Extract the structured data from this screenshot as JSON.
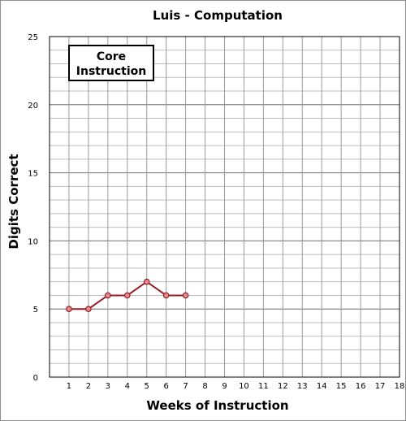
{
  "chart_data": {
    "type": "line",
    "title": "Luis - Computation",
    "xlabel": "Weeks of Instruction",
    "ylabel": "Digits Correct",
    "xlim": [
      0,
      18
    ],
    "ylim": [
      0,
      25
    ],
    "x_ticks": [
      "1",
      "2",
      "3",
      "4",
      "5",
      "6",
      "7",
      "8",
      "9",
      "10",
      "11",
      "12",
      "13",
      "14",
      "15",
      "16",
      "17",
      "18"
    ],
    "y_ticks": [
      "0",
      "5",
      "10",
      "15",
      "20",
      "25"
    ],
    "grid": true,
    "phase_label": [
      "Core",
      "Instruction"
    ],
    "colors": {
      "line": "#9a1c24",
      "marker_fill": "#e88d94",
      "grid": "#bdbdbd"
    },
    "series": [
      {
        "x": [
          1,
          2,
          3,
          4,
          5,
          6,
          7
        ],
        "y": [
          5,
          5,
          6,
          6,
          7,
          6,
          6
        ]
      }
    ]
  }
}
